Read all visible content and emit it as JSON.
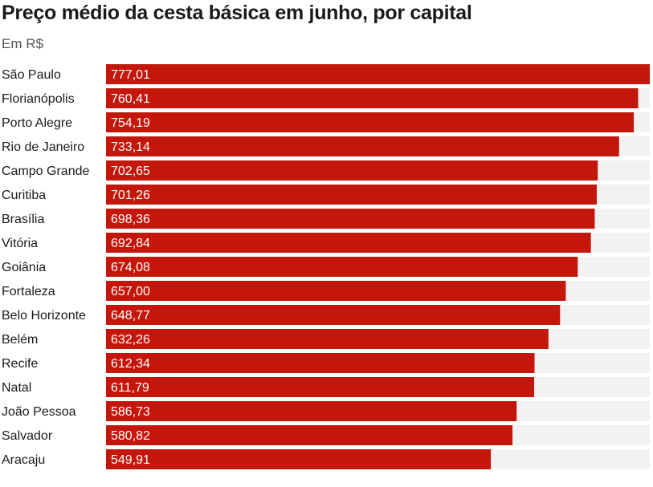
{
  "title": "Preço médio da cesta básica em junho, por capital",
  "subtitle": "Em R$",
  "colors": {
    "bar": "#c4170c",
    "track": "#f2f2f2"
  },
  "chart_data": {
    "type": "bar",
    "orientation": "horizontal",
    "title": "Preço médio da cesta básica em junho, por capital",
    "subtitle": "Em R$",
    "xlim": [
      0,
      777.01
    ],
    "grid": false,
    "categories": [
      "São Paulo",
      "Florianópolis",
      "Porto Alegre",
      "Rio de Janeiro",
      "Campo Grande",
      "Curitiba",
      "Brasília",
      "Vitória",
      "Goiânia",
      "Fortaleza",
      "Belo Horizonte",
      "Belém",
      "Recife",
      "Natal",
      "João Pessoa",
      "Salvador",
      "Aracaju"
    ],
    "values": [
      777.01,
      760.41,
      754.19,
      733.14,
      702.65,
      701.26,
      698.36,
      692.84,
      674.08,
      657.0,
      648.77,
      632.26,
      612.34,
      611.79,
      586.73,
      580.82,
      549.91
    ],
    "value_labels": [
      "777,01",
      "760,41",
      "754,19",
      "733,14",
      "702,65",
      "701,26",
      "698,36",
      "692,84",
      "674,08",
      "657,00",
      "648,77",
      "632,26",
      "612,34",
      "611,79",
      "586,73",
      "580,82",
      "549,91"
    ]
  }
}
